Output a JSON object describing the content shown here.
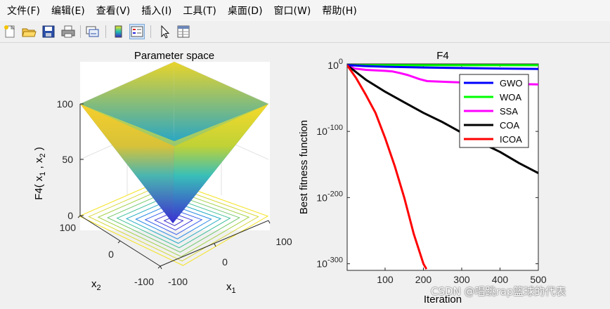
{
  "menu": {
    "items": [
      {
        "label": "文件(F)"
      },
      {
        "label": "编辑(E)"
      },
      {
        "label": "查看(V)"
      },
      {
        "label": "插入(I)"
      },
      {
        "label": "工具(T)"
      },
      {
        "label": "桌面(D)"
      },
      {
        "label": "窗口(W)"
      },
      {
        "label": "帮助(H)"
      }
    ]
  },
  "toolbar": {
    "icons": [
      "new-figure-icon",
      "open-file-icon",
      "save-icon",
      "print-icon",
      "link-plot-icon",
      "insert-colorbar-icon",
      "insert-legend-icon",
      "edit-plot-icon",
      "property-inspector-icon"
    ]
  },
  "left_plot": {
    "title": "Parameter space",
    "zlabel_main": "F4( x",
    "zlabel_sub1": "1",
    "zlabel_mid": " , x",
    "zlabel_sub2": "2",
    "zlabel_end": " )",
    "xlabel_main": "x",
    "xlabel_sub": "1",
    "ylabel_main": "x",
    "ylabel_sub": "2",
    "z_ticks": [
      "100",
      "50",
      "0"
    ],
    "x_ticks": [
      "-100",
      "0",
      "100"
    ],
    "y_ticks": [
      "100",
      "0",
      "-100"
    ]
  },
  "chart_data": {
    "type": "line",
    "title": "F4",
    "xlabel": "Iteration",
    "ylabel": "Best fitness function",
    "yscale": "log",
    "xlim": [
      1,
      500
    ],
    "ylim_exponent": [
      -310,
      2
    ],
    "x_ticks": [
      "100",
      "200",
      "300",
      "400",
      "500"
    ],
    "y_tick_exponents": [
      "0",
      "-100",
      "-200",
      "-300"
    ],
    "legend_position": "top-right",
    "series": [
      {
        "name": "GWO",
        "color": "#0000ff",
        "x": [
          1,
          20,
          50,
          100,
          200,
          300,
          400,
          500
        ],
        "log10_y": [
          0,
          -0.4,
          -1.3,
          -2.2,
          -3.4,
          -4.3,
          -5,
          -5.6
        ]
      },
      {
        "name": "WOA",
        "color": "#00ff00",
        "x": [
          1,
          100,
          200,
          300,
          400,
          500
        ],
        "log10_y": [
          0,
          0,
          0,
          0,
          0,
          0
        ]
      },
      {
        "name": "SSA",
        "color": "#ff00ff",
        "x": [
          1,
          20,
          50,
          100,
          120,
          140,
          160,
          190,
          210,
          250,
          300,
          350,
          400,
          450,
          500
        ],
        "log10_y": [
          0,
          -5,
          -7,
          -8.5,
          -9.5,
          -12,
          -15,
          -21,
          -24,
          -25,
          -26,
          -27,
          -27.8,
          -28.5,
          -29
        ]
      },
      {
        "name": "COA",
        "color": "#000000",
        "x": [
          1,
          50,
          100,
          150,
          200,
          250,
          300,
          350,
          400,
          450,
          500
        ],
        "log10_y": [
          0,
          -22,
          -40,
          -56,
          -72,
          -86,
          -102,
          -117,
          -131,
          -148,
          -163
        ]
      },
      {
        "name": "ICOA",
        "color": "#ff0000",
        "x": [
          1,
          25,
          50,
          75,
          100,
          125,
          150,
          175,
          200,
          208
        ],
        "log10_y": [
          0,
          -20,
          -45,
          -72,
          -110,
          -152,
          -200,
          -255,
          -300,
          -308
        ]
      }
    ]
  },
  "watermark": "CSDN @唱跳rap篮球的代表"
}
